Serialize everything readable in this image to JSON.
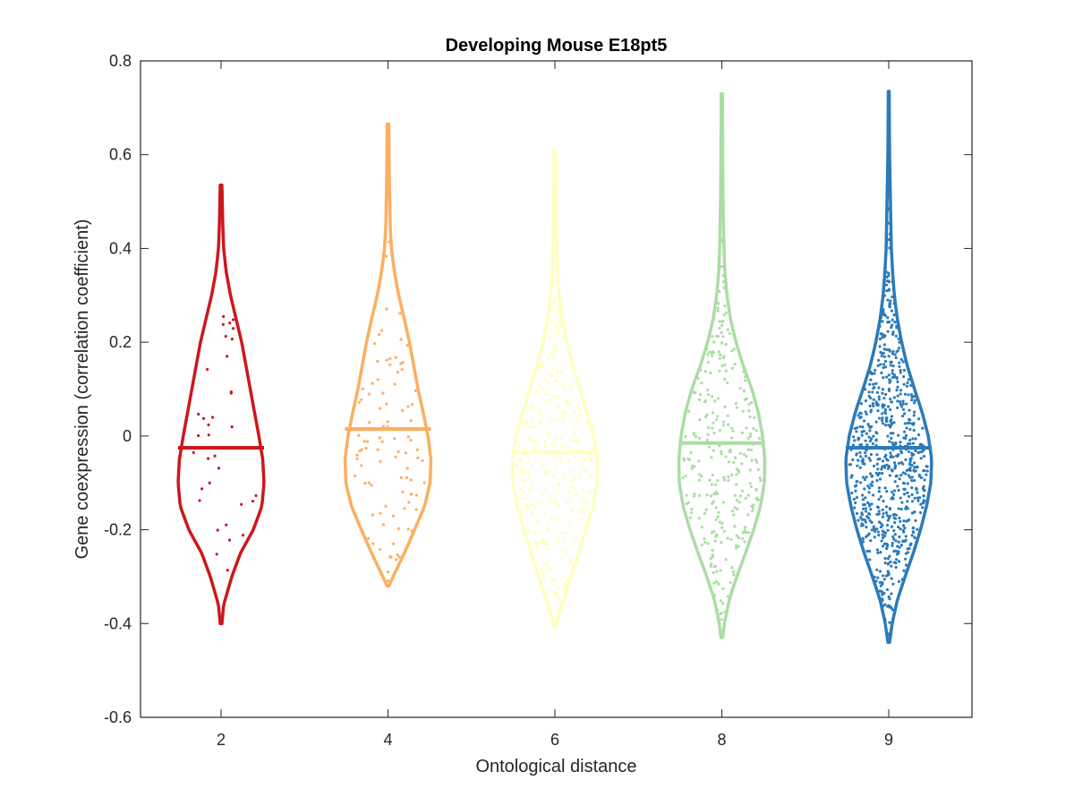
{
  "chart_data": {
    "type": "violin",
    "title": "Developing Mouse E18pt5",
    "xlabel": "Ontological distance",
    "ylabel": "Gene coexpression (correlation coefficient)",
    "ylim": [
      -0.6,
      0.8
    ],
    "yticks": [
      -0.6,
      -0.4,
      -0.2,
      0,
      0.2,
      0.4,
      0.6,
      0.8
    ],
    "ytick_labels": [
      "-0.6",
      "-0.4",
      "-0.2",
      "0",
      "0.2",
      "0.4",
      "0.6",
      "0.8"
    ],
    "grid": false,
    "categories": [
      "2",
      "4",
      "6",
      "8",
      "9"
    ],
    "series": [
      {
        "category": "2",
        "color": "#cb181d",
        "median": -0.025,
        "min": -0.4,
        "max": 0.535,
        "n_points": 35,
        "density": [
          [
            -0.4,
            0.02
          ],
          [
            -0.36,
            0.06
          ],
          [
            -0.3,
            0.25
          ],
          [
            -0.25,
            0.45
          ],
          [
            -0.2,
            0.75
          ],
          [
            -0.15,
            0.95
          ],
          [
            -0.1,
            1.0
          ],
          [
            -0.05,
            0.97
          ],
          [
            0,
            0.88
          ],
          [
            0.05,
            0.78
          ],
          [
            0.1,
            0.68
          ],
          [
            0.15,
            0.58
          ],
          [
            0.2,
            0.48
          ],
          [
            0.25,
            0.35
          ],
          [
            0.3,
            0.22
          ],
          [
            0.35,
            0.12
          ],
          [
            0.4,
            0.06
          ],
          [
            0.45,
            0.04
          ],
          [
            0.535,
            0.02
          ]
        ]
      },
      {
        "category": "4",
        "color": "#fdae61",
        "median": 0.015,
        "min": -0.32,
        "max": 0.665,
        "n_points": 95,
        "density": [
          [
            -0.32,
            0.02
          ],
          [
            -0.3,
            0.12
          ],
          [
            -0.25,
            0.38
          ],
          [
            -0.2,
            0.62
          ],
          [
            -0.15,
            0.85
          ],
          [
            -0.1,
            0.98
          ],
          [
            -0.05,
            1.0
          ],
          [
            0,
            0.93
          ],
          [
            0.05,
            0.82
          ],
          [
            0.1,
            0.7
          ],
          [
            0.15,
            0.6
          ],
          [
            0.2,
            0.5
          ],
          [
            0.25,
            0.38
          ],
          [
            0.3,
            0.25
          ],
          [
            0.35,
            0.15
          ],
          [
            0.4,
            0.08
          ],
          [
            0.45,
            0.05
          ],
          [
            0.55,
            0.03
          ],
          [
            0.665,
            0.02
          ]
        ]
      },
      {
        "category": "6",
        "color": "#ffffbf",
        "median": -0.035,
        "min": -0.41,
        "max": 0.61,
        "n_points": 320,
        "density": [
          [
            -0.41,
            0.02
          ],
          [
            -0.38,
            0.08
          ],
          [
            -0.35,
            0.2
          ],
          [
            -0.3,
            0.38
          ],
          [
            -0.25,
            0.55
          ],
          [
            -0.2,
            0.72
          ],
          [
            -0.15,
            0.88
          ],
          [
            -0.1,
            0.98
          ],
          [
            -0.05,
            1.0
          ],
          [
            0,
            0.9
          ],
          [
            0.05,
            0.75
          ],
          [
            0.1,
            0.58
          ],
          [
            0.15,
            0.42
          ],
          [
            0.2,
            0.28
          ],
          [
            0.25,
            0.17
          ],
          [
            0.3,
            0.1
          ],
          [
            0.35,
            0.06
          ],
          [
            0.45,
            0.03
          ],
          [
            0.61,
            0.02
          ]
        ]
      },
      {
        "category": "8",
        "color": "#abdda4",
        "median": -0.015,
        "min": -0.43,
        "max": 0.73,
        "n_points": 300,
        "density": [
          [
            -0.43,
            0.02
          ],
          [
            -0.4,
            0.06
          ],
          [
            -0.35,
            0.17
          ],
          [
            -0.3,
            0.35
          ],
          [
            -0.25,
            0.55
          ],
          [
            -0.2,
            0.74
          ],
          [
            -0.15,
            0.9
          ],
          [
            -0.1,
            0.99
          ],
          [
            -0.05,
            1.0
          ],
          [
            0,
            0.95
          ],
          [
            0.05,
            0.85
          ],
          [
            0.1,
            0.7
          ],
          [
            0.15,
            0.5
          ],
          [
            0.2,
            0.33
          ],
          [
            0.25,
            0.2
          ],
          [
            0.3,
            0.12
          ],
          [
            0.35,
            0.07
          ],
          [
            0.4,
            0.05
          ],
          [
            0.5,
            0.03
          ],
          [
            0.6,
            0.02
          ],
          [
            0.73,
            0.015
          ]
        ]
      },
      {
        "category": "9",
        "color": "#2b7bba",
        "median": -0.025,
        "min": -0.44,
        "max": 0.735,
        "n_points": 750,
        "density": [
          [
            -0.44,
            0.02
          ],
          [
            -0.4,
            0.08
          ],
          [
            -0.35,
            0.2
          ],
          [
            -0.3,
            0.38
          ],
          [
            -0.25,
            0.57
          ],
          [
            -0.2,
            0.74
          ],
          [
            -0.15,
            0.88
          ],
          [
            -0.1,
            0.98
          ],
          [
            -0.05,
            1.0
          ],
          [
            0,
            0.92
          ],
          [
            0.05,
            0.78
          ],
          [
            0.1,
            0.6
          ],
          [
            0.15,
            0.43
          ],
          [
            0.2,
            0.3
          ],
          [
            0.25,
            0.2
          ],
          [
            0.3,
            0.13
          ],
          [
            0.35,
            0.09
          ],
          [
            0.4,
            0.06
          ],
          [
            0.5,
            0.04
          ],
          [
            0.6,
            0.02
          ],
          [
            0.735,
            0.01
          ]
        ]
      }
    ]
  }
}
